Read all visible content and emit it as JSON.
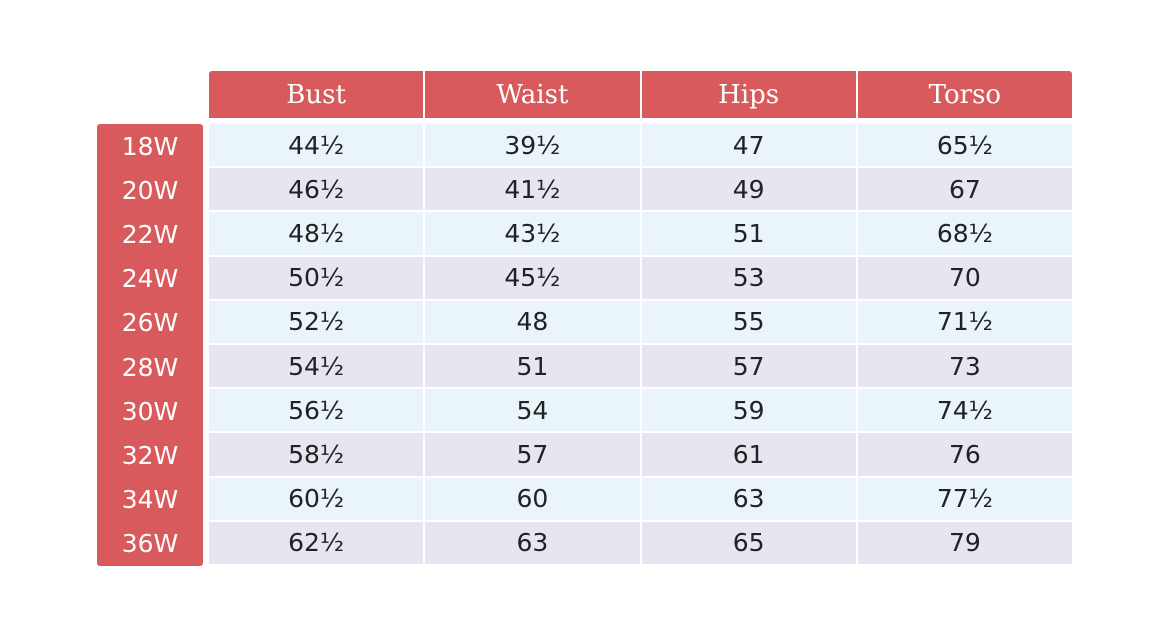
{
  "table": {
    "columns": [
      "Bust",
      "Waist",
      "Hips",
      "Torso"
    ],
    "rows": [
      {
        "label": "18W",
        "cells": [
          "44½",
          "39½",
          "47",
          "65½"
        ]
      },
      {
        "label": "20W",
        "cells": [
          "46½",
          "41½",
          "49",
          "67"
        ]
      },
      {
        "label": "22W",
        "cells": [
          "48½",
          "43½",
          "51",
          "68½"
        ]
      },
      {
        "label": "24W",
        "cells": [
          "50½",
          "45½",
          "53",
          "70"
        ]
      },
      {
        "label": "26W",
        "cells": [
          "52½",
          "48",
          "55",
          "71½"
        ]
      },
      {
        "label": "28W",
        "cells": [
          "54½",
          "51",
          "57",
          "73"
        ]
      },
      {
        "label": "30W",
        "cells": [
          "56½",
          "54",
          "59",
          "74½"
        ]
      },
      {
        "label": "32W",
        "cells": [
          "58½",
          "57",
          "61",
          "76"
        ]
      },
      {
        "label": "34W",
        "cells": [
          "60½",
          "60",
          "63",
          "77½"
        ]
      },
      {
        "label": "36W",
        "cells": [
          "62½",
          "63",
          "65",
          "79"
        ]
      }
    ]
  }
}
